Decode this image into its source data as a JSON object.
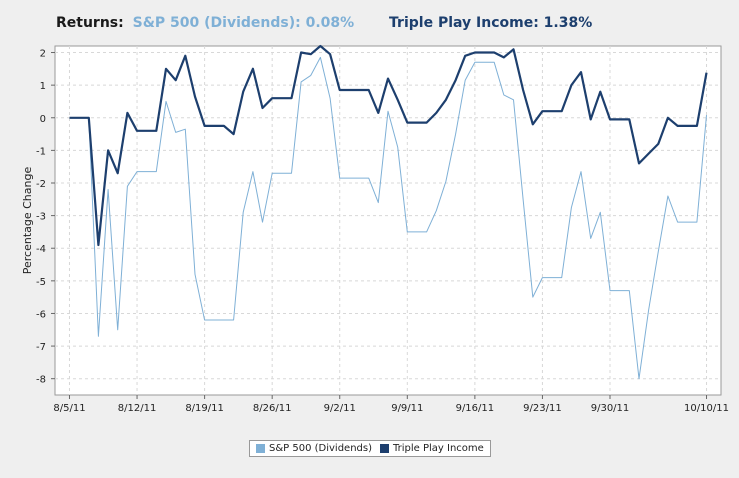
{
  "header": {
    "label": "Returns:",
    "sp_text": "S&P 500 (Dividends): 0.08%",
    "tp_text": "Triple Play Income: 1.38%"
  },
  "colors": {
    "sp": "#7fb0d6",
    "tp": "#1d3f6e",
    "grid": "#d8d8d8"
  },
  "chart_data": {
    "type": "line",
    "title": "",
    "xlabel": "",
    "ylabel": "Percentage Change",
    "ylim": [
      -8.5,
      2.2
    ],
    "yticks": [
      2,
      1,
      0,
      -1,
      -2,
      -3,
      -4,
      -5,
      -6,
      -7,
      -8
    ],
    "xticks": [
      {
        "label": "8/5/11",
        "x": 0
      },
      {
        "label": "8/12/11",
        "x": 7
      },
      {
        "label": "8/19/11",
        "x": 14
      },
      {
        "label": "8/26/11",
        "x": 21
      },
      {
        "label": "9/2/11",
        "x": 28
      },
      {
        "label": "9/9/11",
        "x": 35
      },
      {
        "label": "9/16/11",
        "x": 42
      },
      {
        "label": "9/23/11",
        "x": 49
      },
      {
        "label": "9/30/11",
        "x": 56
      },
      {
        "label": "10/10/11",
        "x": 66
      }
    ],
    "grid": true,
    "legend_position": "bottom-center",
    "series": [
      {
        "name": "S&P 500 (Dividends)",
        "key": "sp",
        "points": [
          [
            0,
            0
          ],
          [
            1,
            0
          ],
          [
            2,
            0
          ],
          [
            3,
            -6.7
          ],
          [
            4,
            -2.2
          ],
          [
            5,
            -6.5
          ],
          [
            6,
            -2.1
          ],
          [
            7,
            -1.65
          ],
          [
            8,
            -1.65
          ],
          [
            9,
            -1.65
          ],
          [
            10,
            0.5
          ],
          [
            11,
            -0.45
          ],
          [
            12,
            -0.35
          ],
          [
            13,
            -4.8
          ],
          [
            14,
            -6.2
          ],
          [
            15,
            -6.2
          ],
          [
            16,
            -6.2
          ],
          [
            17,
            -6.2
          ],
          [
            18,
            -2.9
          ],
          [
            19,
            -1.65
          ],
          [
            20,
            -3.2
          ],
          [
            21,
            -1.7
          ],
          [
            22,
            -1.7
          ],
          [
            23,
            -1.7
          ],
          [
            24,
            1.1
          ],
          [
            25,
            1.3
          ],
          [
            26,
            1.85
          ],
          [
            27,
            0.6
          ],
          [
            28,
            -1.85
          ],
          [
            29,
            -1.85
          ],
          [
            30,
            -1.85
          ],
          [
            31,
            -1.85
          ],
          [
            32,
            -2.6
          ],
          [
            33,
            0.2
          ],
          [
            34,
            -0.9
          ],
          [
            35,
            -3.5
          ],
          [
            36,
            -3.5
          ],
          [
            37,
            -3.5
          ],
          [
            38,
            -2.85
          ],
          [
            39,
            -1.95
          ],
          [
            40,
            -0.5
          ],
          [
            41,
            1.15
          ],
          [
            42,
            1.7
          ],
          [
            43,
            1.7
          ],
          [
            44,
            1.7
          ],
          [
            45,
            0.7
          ],
          [
            46,
            0.55
          ],
          [
            47,
            -2.5
          ],
          [
            48,
            -5.5
          ],
          [
            49,
            -4.9
          ],
          [
            50,
            -4.9
          ],
          [
            51,
            -4.9
          ],
          [
            52,
            -2.75
          ],
          [
            53,
            -1.65
          ],
          [
            54,
            -3.7
          ],
          [
            55,
            -2.9
          ],
          [
            56,
            -5.3
          ],
          [
            57,
            -5.3
          ],
          [
            58,
            -5.3
          ],
          [
            59,
            -8.0
          ],
          [
            60,
            -5.9
          ],
          [
            61,
            -4.1
          ],
          [
            62,
            -2.4
          ],
          [
            63,
            -3.2
          ],
          [
            64,
            -3.2
          ],
          [
            65,
            -3.2
          ],
          [
            66,
            0.08
          ]
        ]
      },
      {
        "name": "Triple Play Income",
        "key": "tp",
        "points": [
          [
            0,
            0
          ],
          [
            1,
            0
          ],
          [
            2,
            0
          ],
          [
            3,
            -3.9
          ],
          [
            4,
            -1.0
          ],
          [
            5,
            -1.7
          ],
          [
            6,
            0.15
          ],
          [
            7,
            -0.4
          ],
          [
            8,
            -0.4
          ],
          [
            9,
            -0.4
          ],
          [
            10,
            1.5
          ],
          [
            11,
            1.15
          ],
          [
            12,
            1.9
          ],
          [
            13,
            0.65
          ],
          [
            14,
            -0.25
          ],
          [
            15,
            -0.25
          ],
          [
            16,
            -0.25
          ],
          [
            17,
            -0.5
          ],
          [
            18,
            0.8
          ],
          [
            19,
            1.5
          ],
          [
            20,
            0.3
          ],
          [
            21,
            0.6
          ],
          [
            22,
            0.6
          ],
          [
            23,
            0.6
          ],
          [
            24,
            2.0
          ],
          [
            25,
            1.95
          ],
          [
            26,
            2.2
          ],
          [
            27,
            1.95
          ],
          [
            28,
            0.85
          ],
          [
            29,
            0.85
          ],
          [
            30,
            0.85
          ],
          [
            31,
            0.85
          ],
          [
            32,
            0.15
          ],
          [
            33,
            1.2
          ],
          [
            34,
            0.55
          ],
          [
            35,
            -0.15
          ],
          [
            36,
            -0.15
          ],
          [
            37,
            -0.15
          ],
          [
            38,
            0.15
          ],
          [
            39,
            0.55
          ],
          [
            40,
            1.15
          ],
          [
            41,
            1.9
          ],
          [
            42,
            2.0
          ],
          [
            43,
            2.0
          ],
          [
            44,
            2.0
          ],
          [
            45,
            1.85
          ],
          [
            46,
            2.1
          ],
          [
            47,
            0.85
          ],
          [
            48,
            -0.2
          ],
          [
            49,
            0.2
          ],
          [
            50,
            0.2
          ],
          [
            51,
            0.2
          ],
          [
            52,
            1.0
          ],
          [
            53,
            1.4
          ],
          [
            54,
            -0.05
          ],
          [
            55,
            0.8
          ],
          [
            56,
            -0.05
          ],
          [
            57,
            -0.05
          ],
          [
            58,
            -0.05
          ],
          [
            59,
            -1.4
          ],
          [
            60,
            -1.1
          ],
          [
            61,
            -0.8
          ],
          [
            62,
            0.0
          ],
          [
            63,
            -0.25
          ],
          [
            64,
            -0.25
          ],
          [
            65,
            -0.25
          ],
          [
            66,
            1.38
          ]
        ]
      }
    ]
  }
}
